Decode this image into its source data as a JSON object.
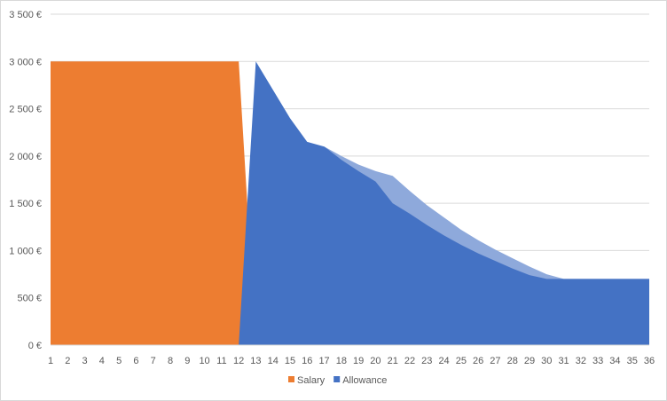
{
  "chart_data": {
    "type": "area",
    "title": "",
    "xlabel": "",
    "ylabel": "",
    "x": [
      1,
      2,
      3,
      4,
      5,
      6,
      7,
      8,
      9,
      10,
      11,
      12,
      13,
      14,
      15,
      16,
      17,
      18,
      19,
      20,
      21,
      22,
      23,
      24,
      25,
      26,
      27,
      28,
      29,
      30,
      31,
      32,
      33,
      34,
      35,
      36
    ],
    "y_tick_labels": [
      "0 €",
      "500 €",
      "1 000 €",
      "1 500 €",
      "2 000 €",
      "2 500 €",
      "3 000 €",
      "3 500 €"
    ],
    "y_ticks": [
      0,
      500,
      1000,
      1500,
      2000,
      2500,
      3000,
      3500
    ],
    "ylim": [
      0,
      3500
    ],
    "grid": true,
    "legend_position": "bottom",
    "series": [
      {
        "name": "Salary",
        "color": "#ed7d31",
        "values": [
          3000,
          3000,
          3000,
          3000,
          3000,
          3000,
          3000,
          3000,
          3000,
          3000,
          3000,
          3000,
          0,
          0,
          0,
          0,
          500,
          500,
          500,
          500,
          0,
          0,
          0,
          0,
          0,
          0,
          0,
          0,
          0,
          0,
          0,
          0,
          0,
          0,
          0,
          0
        ]
      },
      {
        "name": "Allowance",
        "color": "#4472c4",
        "values": [
          0,
          0,
          0,
          0,
          0,
          0,
          0,
          0,
          0,
          0,
          0,
          0,
          3000,
          2700,
          2400,
          2150,
          2100,
          1960,
          1840,
          1730,
          1500,
          1390,
          1270,
          1160,
          1060,
          970,
          890,
          810,
          740,
          700,
          700,
          700,
          700,
          700,
          700,
          700
        ]
      },
      {
        "name": "",
        "color": "#8ea9db",
        "values": [
          null,
          null,
          null,
          null,
          null,
          null,
          null,
          null,
          null,
          null,
          null,
          null,
          null,
          null,
          null,
          null,
          2100,
          2000,
          1910,
          1840,
          1790,
          1630,
          1480,
          1350,
          1220,
          1110,
          1010,
          920,
          830,
          750,
          700,
          700,
          700,
          700,
          700,
          700
        ]
      }
    ]
  }
}
